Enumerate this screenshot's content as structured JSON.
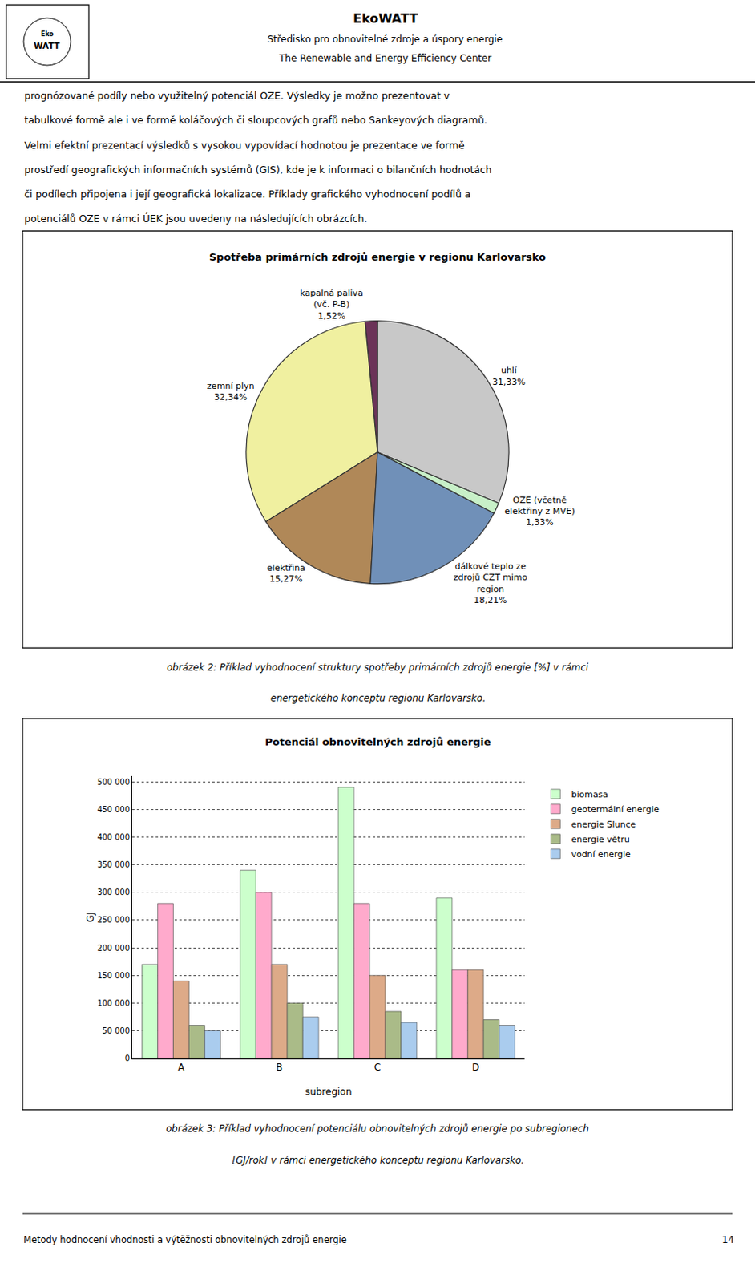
{
  "chart_data": [
    {
      "type": "pie",
      "title": "Spotřeba primárních zdrojů energie v regionu Karlovarsko",
      "categories": [
        "uhlí",
        "kapalná paliva\n(vč. P-B)",
        "zemní plyn",
        "elektřina",
        "dálkové teplo ze\nzdrojů CZT mimo\nregion",
        "OZE (včetně\nelektřiny z MVE)"
      ],
      "values": [
        31.33,
        1.52,
        32.34,
        15.27,
        18.21,
        1.33
      ],
      "value_labels": [
        "31,33%",
        "1,52%",
        "32,34%",
        "15,27%",
        "18,21%",
        "1,33%"
      ],
      "colors": [
        "#c8c8c8",
        "#6b3358",
        "#f0f0a0",
        "#b08858",
        "#7090b8",
        "#c8f0c8"
      ],
      "data_labels": true,
      "annotations": [
        "Eko",
        "WATT",
        "EkoWATT",
        "Středisko pro obnovitelné zdroje a úspory energie",
        "The Renewable and Energy Efficiency Center",
        "prognózované podíly nebo využitelný potenciál OZE. Výsledky je možno prezentovat v",
        "tabulkové formě ale i ve formě koláčových či sloupcových grafů nebo Sankeyových diagramů.",
        "Velmi efektní prezentací výsledků s vysokou vypovídací hodnotou je prezentace ve formě",
        "prostředí geografických informačních systémů (GIS), kde je k informaci o bilančních hodnotách",
        "či podílech připojena i její geografická lokalizace. Příklady grafického vyhodnocení podílů a",
        "potenciálů OZE v rámci ÚEK jsou uvedeny na následujících obrázcích.",
        "obrázek 2: Příklad vyhodnocení struktury spotřeby primárních zdrojů energie [%] v rámci",
        "energetického konceptu regionu Karlovarsko."
      ]
    },
    {
      "type": "bar",
      "title": "Potenciál obnovitelných zdrojů energie",
      "x_label": "subregion",
      "y_label": "GJ",
      "categories": [
        "A",
        "B",
        "C",
        "D"
      ],
      "series": [
        {
          "name": "biomasa",
          "color": "#ccffcc",
          "values": [
            170000,
            340000,
            490000,
            290000
          ]
        },
        {
          "name": "geotermální energie",
          "color": "#ffaacc",
          "values": [
            280000,
            300000,
            280000,
            160000
          ]
        },
        {
          "name": "energie Slunce",
          "color": "#ddaa88",
          "values": [
            140000,
            170000,
            150000,
            160000
          ]
        },
        {
          "name": "energie větru",
          "color": "#aabb88",
          "values": [
            60000,
            100000,
            85000,
            70000
          ]
        },
        {
          "name": "vodní energie",
          "color": "#aaccee",
          "values": [
            50000,
            75000,
            65000,
            60000
          ]
        }
      ],
      "ylim": [
        0,
        510000
      ],
      "yticks": [
        0,
        {
          "value": 50000,
          "label": "50 000"
        },
        {
          "value": 100000,
          "label": "100 000"
        },
        {
          "value": 150000,
          "label": "150 000"
        },
        {
          "value": 200000,
          "label": "200 000"
        },
        {
          "value": 250000,
          "label": "250 000"
        },
        {
          "value": 300000,
          "label": "300 000"
        },
        {
          "value": 350000,
          "label": "350 000"
        },
        {
          "value": 400000,
          "label": "400 000"
        },
        {
          "value": 450000,
          "label": "450 000"
        },
        {
          "value": 500000,
          "label": "500 000"
        }
      ],
      "grid": true,
      "legend": "right",
      "annotations": [
        "obrázek 3: Příklad vyhodnocení potenciálu obnovitelných zdrojů energie po subregionech",
        "[GJ/rok] v rámci energetického konceptu regionu Karlovarsko.",
        "Metody hodnocení vhodnosti a výtěžnosti obnovitelných zdrojů energie",
        "14"
      ]
    }
  ]
}
